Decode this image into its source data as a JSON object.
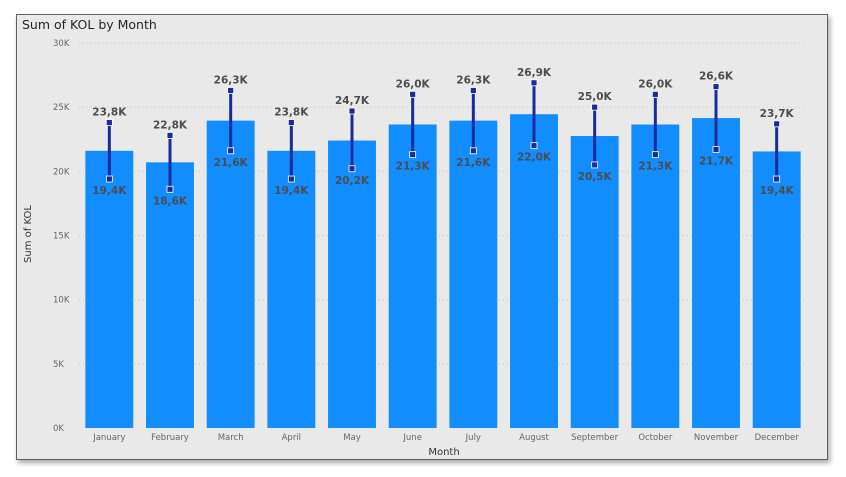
{
  "chart_data": {
    "type": "bar",
    "title": "Sum of KOL by Month",
    "xlabel": "Month",
    "ylabel": "Sum of KOL",
    "ylim": [
      0,
      30000
    ],
    "yticks": [
      0,
      5000,
      10000,
      15000,
      20000,
      25000,
      30000
    ],
    "ytick_labels": [
      "0K",
      "5K",
      "10K",
      "15K",
      "20K",
      "25K",
      "30K"
    ],
    "grid": true,
    "legend": "none",
    "categories": [
      "January",
      "February",
      "March",
      "April",
      "May",
      "June",
      "July",
      "August",
      "September",
      "October",
      "November",
      "December"
    ],
    "series": [
      {
        "values": [
          21600,
          20700,
          23950,
          21600,
          22400,
          23650,
          23950,
          24450,
          22750,
          23650,
          24150,
          21550
        ]
      }
    ],
    "error_bars": {
      "upper": [
        23800,
        22800,
        26300,
        23800,
        24700,
        26000,
        26300,
        26900,
        25000,
        26000,
        26600,
        23700
      ],
      "lower": [
        19400,
        18600,
        21600,
        19400,
        20200,
        21300,
        21600,
        22000,
        20500,
        21300,
        21700,
        19400
      ],
      "upper_labels": [
        "23,8K",
        "22,8K",
        "26,3K",
        "23,8K",
        "24,7K",
        "26,0K",
        "26,3K",
        "26,9K",
        "25,0K",
        "26,0K",
        "26,6K",
        "23,7K"
      ],
      "lower_labels": [
        "19,4K",
        "18,6K",
        "21,6K",
        "19,4K",
        "20,2K",
        "21,3K",
        "21,6K",
        "22,0K",
        "20,5K",
        "21,3K",
        "21,7K",
        "19,4K"
      ]
    },
    "colors": {
      "bar": "#118dff",
      "error_bar": "#1a2b9e"
    }
  }
}
